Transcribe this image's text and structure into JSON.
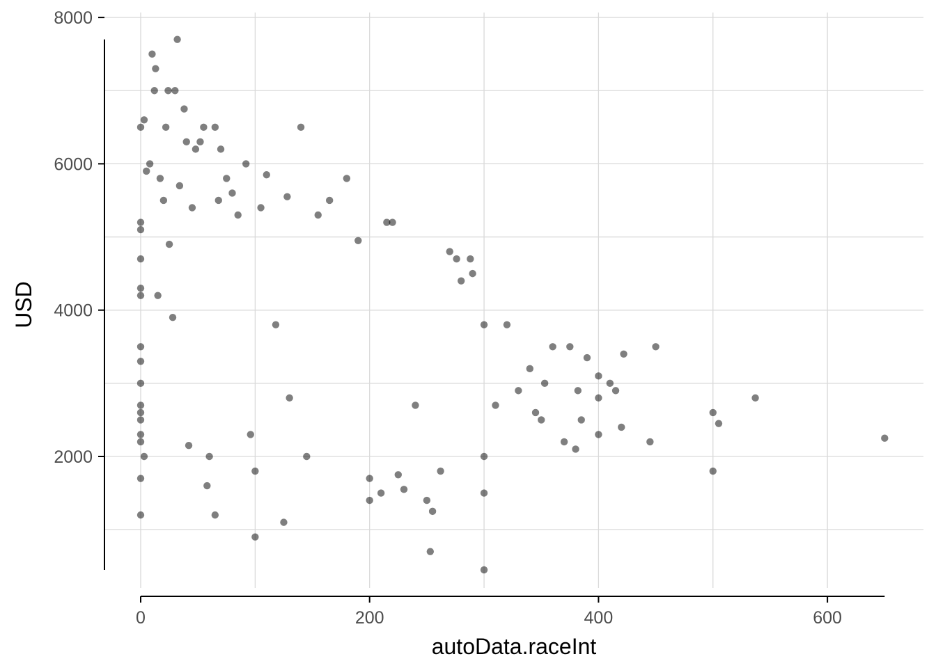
{
  "chart_data": {
    "type": "scatter",
    "title": "",
    "xlabel": "autoData.raceInt",
    "ylabel": "USD",
    "xlim": [
      -20,
      680
    ],
    "ylim": [
      0,
      8000
    ],
    "xticks": [
      0,
      200,
      400,
      600
    ],
    "yticks": [
      2000,
      4000,
      6000,
      8000
    ],
    "grid": true,
    "legend": "none",
    "point_color": "#000000",
    "point_opacity": 0.5,
    "series": [
      {
        "points": [
          [
            0,
            1200
          ],
          [
            0,
            1700
          ],
          [
            0,
            2200
          ],
          [
            0,
            2300
          ],
          [
            0,
            2500
          ],
          [
            0,
            2600
          ],
          [
            0,
            2700
          ],
          [
            0,
            3000
          ],
          [
            0,
            3300
          ],
          [
            0,
            3500
          ],
          [
            0,
            4200
          ],
          [
            0,
            4300
          ],
          [
            0,
            4700
          ],
          [
            0,
            5100
          ],
          [
            0,
            5200
          ],
          [
            0,
            6500
          ],
          [
            3,
            2000
          ],
          [
            3,
            6600
          ],
          [
            5,
            5900
          ],
          [
            8,
            6000
          ],
          [
            10,
            7500
          ],
          [
            12,
            7000
          ],
          [
            13,
            7300
          ],
          [
            15,
            4200
          ],
          [
            17,
            5800
          ],
          [
            20,
            5500
          ],
          [
            22,
            6500
          ],
          [
            24,
            7000
          ],
          [
            25,
            4900
          ],
          [
            28,
            3900
          ],
          [
            30,
            7000
          ],
          [
            32,
            7700
          ],
          [
            34,
            5700
          ],
          [
            38,
            6750
          ],
          [
            40,
            6300
          ],
          [
            42,
            2150
          ],
          [
            45,
            5400
          ],
          [
            48,
            6200
          ],
          [
            52,
            6300
          ],
          [
            55,
            6500
          ],
          [
            58,
            1600
          ],
          [
            60,
            2000
          ],
          [
            65,
            1200
          ],
          [
            65,
            6500
          ],
          [
            68,
            5500
          ],
          [
            70,
            6200
          ],
          [
            75,
            5800
          ],
          [
            80,
            5600
          ],
          [
            85,
            5300
          ],
          [
            92,
            6000
          ],
          [
            96,
            2300
          ],
          [
            100,
            900
          ],
          [
            100,
            1800
          ],
          [
            105,
            5400
          ],
          [
            110,
            5850
          ],
          [
            118,
            3800
          ],
          [
            125,
            1100
          ],
          [
            128,
            5550
          ],
          [
            130,
            2800
          ],
          [
            140,
            6500
          ],
          [
            145,
            2000
          ],
          [
            155,
            5300
          ],
          [
            165,
            5500
          ],
          [
            180,
            5800
          ],
          [
            190,
            4950
          ],
          [
            200,
            1400
          ],
          [
            200,
            1700
          ],
          [
            210,
            1500
          ],
          [
            215,
            5200
          ],
          [
            220,
            5200
          ],
          [
            225,
            1750
          ],
          [
            230,
            1550
          ],
          [
            240,
            2700
          ],
          [
            250,
            1400
          ],
          [
            253,
            700
          ],
          [
            255,
            1250
          ],
          [
            262,
            1800
          ],
          [
            270,
            4800
          ],
          [
            276,
            4700
          ],
          [
            280,
            4400
          ],
          [
            288,
            4700
          ],
          [
            290,
            4500
          ],
          [
            300,
            450
          ],
          [
            300,
            1500
          ],
          [
            300,
            2000
          ],
          [
            300,
            3800
          ],
          [
            310,
            2700
          ],
          [
            320,
            3800
          ],
          [
            330,
            2900
          ],
          [
            340,
            3200
          ],
          [
            345,
            2600
          ],
          [
            350,
            2500
          ],
          [
            353,
            3000
          ],
          [
            360,
            3500
          ],
          [
            370,
            2200
          ],
          [
            375,
            3500
          ],
          [
            380,
            2100
          ],
          [
            382,
            2900
          ],
          [
            385,
            2500
          ],
          [
            390,
            3350
          ],
          [
            400,
            2300
          ],
          [
            400,
            2800
          ],
          [
            400,
            3100
          ],
          [
            410,
            3000
          ],
          [
            415,
            2900
          ],
          [
            420,
            2400
          ],
          [
            422,
            3400
          ],
          [
            445,
            2200
          ],
          [
            450,
            3500
          ],
          [
            500,
            1800
          ],
          [
            500,
            2600
          ],
          [
            505,
            2450
          ],
          [
            537,
            2800
          ],
          [
            650,
            2250
          ]
        ]
      }
    ]
  }
}
